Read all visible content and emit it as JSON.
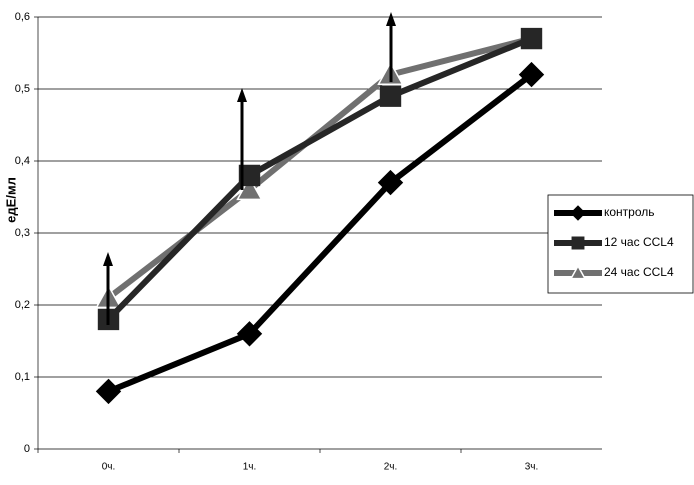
{
  "chart_data": {
    "type": "line",
    "y_label": "едЕ/мл",
    "categories": [
      "0ч.",
      "1ч.",
      "2ч.",
      "3ч."
    ],
    "series": [
      {
        "name": "контроль",
        "color": "#000000",
        "marker": "diamond",
        "values": [
          0.08,
          0.16,
          0.37,
          0.52
        ]
      },
      {
        "name": "12 час CCL4",
        "color": "#262626",
        "marker": "square",
        "values": [
          0.18,
          0.38,
          0.49,
          0.57
        ]
      },
      {
        "name": "24 час CCL4",
        "color": "#707070",
        "marker": "triangle",
        "values": [
          0.21,
          0.36,
          0.52,
          0.57
        ]
      }
    ],
    "ylim": [
      0,
      0.6
    ],
    "yticks": [
      0,
      {
        "value": 0.1,
        "label": "0,1"
      },
      {
        "value": 0.2,
        "label": "0,2"
      },
      {
        "value": 0.3,
        "label": "0,3"
      },
      {
        "value": 0.4,
        "label": "0,4"
      },
      {
        "value": 0.5,
        "label": "0,5"
      },
      {
        "value": 0.6,
        "label": "0,6"
      }
    ],
    "grid": true,
    "legend": "right"
  }
}
